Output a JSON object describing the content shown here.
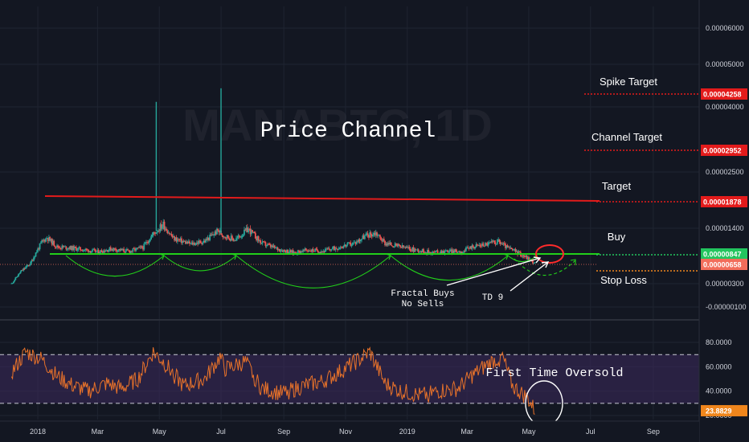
{
  "watermark": "MANABTC, 1D",
  "chart_data": [
    {
      "type": "candlestick",
      "title": "Price Channel",
      "y_ticks": [
        "0.00006000",
        "0.00005000",
        "0.00004000",
        "0.00002500",
        "0.00001400",
        "0.00000300",
        "-0.00000100"
      ],
      "x_ticks": [
        "2018",
        "Mar",
        "May",
        "Jul",
        "Sep",
        "Nov",
        "2019",
        "Mar",
        "May",
        "Jul",
        "Sep"
      ],
      "price_series": [
        [
          "2017-12-06",
          3e-06
        ],
        [
          "2017-12-15",
          5.2e-06
        ],
        [
          "2017-12-25",
          6.8e-06
        ],
        [
          "2018-01-05",
          1.1e-05
        ],
        [
          "2018-01-10",
          1.2e-05
        ],
        [
          "2018-01-20",
          1e-05
        ],
        [
          "2018-02-01",
          9.8e-06
        ],
        [
          "2018-02-15",
          9.4e-06
        ],
        [
          "2018-03-01",
          8.9e-06
        ],
        [
          "2018-03-15",
          9.6e-06
        ],
        [
          "2018-04-01",
          9e-06
        ],
        [
          "2018-04-15",
          9.9e-06
        ],
        [
          "2018-04-25",
          1.28e-05
        ],
        [
          "2018-05-05",
          1.47e-05
        ],
        [
          "2018-05-15",
          1.18e-05
        ],
        [
          "2018-06-01",
          1.06e-05
        ],
        [
          "2018-06-15",
          1.12e-05
        ],
        [
          "2018-06-28",
          1.35e-05
        ],
        [
          "2018-07-03",
          1.25e-05
        ],
        [
          "2018-07-15",
          1.15e-05
        ],
        [
          "2018-07-28",
          1.38e-05
        ],
        [
          "2018-08-10",
          1.08e-05
        ],
        [
          "2018-08-25",
          9.6e-06
        ],
        [
          "2018-09-10",
          8.8e-06
        ],
        [
          "2018-09-25",
          9.3e-06
        ],
        [
          "2018-10-10",
          9.1e-06
        ],
        [
          "2018-10-25",
          9.9e-06
        ],
        [
          "2018-11-10",
          1.08e-05
        ],
        [
          "2018-11-20",
          1.23e-05
        ],
        [
          "2018-12-01",
          1.3e-05
        ],
        [
          "2018-12-10",
          1.08e-05
        ],
        [
          "2018-12-25",
          1e-05
        ],
        [
          "2019-01-10",
          9.3e-06
        ],
        [
          "2019-01-25",
          8.8e-06
        ],
        [
          "2019-02-10",
          9.1e-06
        ],
        [
          "2019-02-25",
          9e-06
        ],
        [
          "2019-03-05",
          1e-05
        ],
        [
          "2019-03-20",
          1.06e-05
        ],
        [
          "2019-04-01",
          1.12e-05
        ],
        [
          "2019-04-10",
          9.8e-06
        ],
        [
          "2019-04-20",
          8.8e-06
        ],
        [
          "2019-05-01",
          7.6e-06
        ],
        [
          "2019-05-07",
          6.8e-06
        ]
      ],
      "wick_spikes": [
        {
          "date": "2018-04-28",
          "high": 4.1e-05
        },
        {
          "date": "2018-07-01",
          "high": 4.4e-05
        }
      ]
    },
    {
      "type": "line",
      "y_ticks": [
        "80.0000",
        "60.0000",
        "40.0000",
        "20.0000"
      ],
      "rsi_series": [
        [
          "2017-12-06",
          55
        ],
        [
          "2017-12-20",
          72
        ],
        [
          "2018-01-05",
          66
        ],
        [
          "2018-01-20",
          52
        ],
        [
          "2018-02-05",
          44
        ],
        [
          "2018-02-20",
          40
        ],
        [
          "2018-03-10",
          46
        ],
        [
          "2018-03-25",
          42
        ],
        [
          "2018-04-10",
          50
        ],
        [
          "2018-04-25",
          72
        ],
        [
          "2018-05-05",
          64
        ],
        [
          "2018-05-25",
          44
        ],
        [
          "2018-06-15",
          50
        ],
        [
          "2018-06-30",
          68
        ],
        [
          "2018-07-05",
          58
        ],
        [
          "2018-07-25",
          64
        ],
        [
          "2018-08-10",
          42
        ],
        [
          "2018-08-30",
          38
        ],
        [
          "2018-09-20",
          44
        ],
        [
          "2018-10-10",
          48
        ],
        [
          "2018-10-25",
          55
        ],
        [
          "2018-11-15",
          66
        ],
        [
          "2018-11-25",
          72
        ],
        [
          "2018-12-10",
          46
        ],
        [
          "2018-12-25",
          40
        ],
        [
          "2019-01-15",
          36
        ],
        [
          "2019-02-01",
          40
        ],
        [
          "2019-02-20",
          42
        ],
        [
          "2019-03-05",
          52
        ],
        [
          "2019-03-25",
          64
        ],
        [
          "2019-04-05",
          68
        ],
        [
          "2019-04-15",
          44
        ],
        [
          "2019-04-30",
          34
        ],
        [
          "2019-05-07",
          23.8829
        ]
      ]
    }
  ],
  "annotations": {
    "spike_target": "Spike Target",
    "channel_target": "Channel Target",
    "target": "Target",
    "buy": "Buy",
    "stop_loss": "Stop Loss",
    "fractal_buys": "Fractal Buys",
    "no_sells": "No Sells",
    "td9": "TD 9",
    "first_time_oversold": "First Time Oversold"
  },
  "price_tags": [
    {
      "label": "0.00004258",
      "color": "#e31b1b"
    },
    {
      "label": "0.00002952",
      "color": "#e31b1b"
    },
    {
      "label": "0.00001878",
      "color": "#e31b1b"
    },
    {
      "label": "0.00000847",
      "color": "#22c55e"
    },
    {
      "label": "0.00000658",
      "color": "#f26d5b"
    }
  ],
  "rsi_tag": {
    "label": "23.8829",
    "color": "#f0861c"
  },
  "colors": {
    "background": "#131722",
    "grid": "#1f2431",
    "up": "#26a69a",
    "down": "#ef5350",
    "resistance": "#e31b1b",
    "support": "#22d01a",
    "rsi_line": "#e8722a",
    "rsi_band": "#3c2a5c",
    "target_dotted": "#e31b1b",
    "buy_dotted": "#22c55e",
    "stop_dotted": "#f0861c"
  }
}
